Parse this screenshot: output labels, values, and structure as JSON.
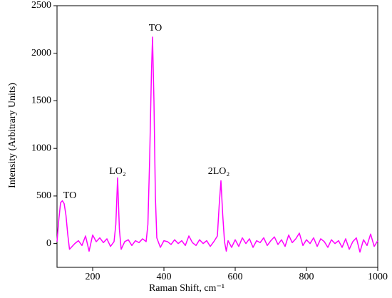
{
  "chart_data": {
    "type": "line",
    "x_label": "Raman Shift, cm⁻¹",
    "y_label": "Intensity (Arbitrary Units)",
    "annotations": [
      "TO",
      "LO₂",
      "TO",
      "2LO₂"
    ],
    "x": [
      100,
      105,
      110,
      115,
      120,
      125,
      130,
      135,
      140,
      150,
      160,
      170,
      180,
      190,
      200,
      210,
      220,
      230,
      240,
      250,
      260,
      265,
      270,
      275,
      280,
      290,
      300,
      310,
      320,
      330,
      340,
      350,
      355,
      360,
      365,
      368,
      372,
      376,
      380,
      390,
      400,
      410,
      420,
      430,
      440,
      450,
      460,
      470,
      480,
      490,
      500,
      510,
      520,
      530,
      540,
      550,
      555,
      560,
      565,
      570,
      575,
      580,
      590,
      600,
      610,
      620,
      630,
      640,
      650,
      660,
      670,
      680,
      690,
      700,
      710,
      720,
      730,
      740,
      750,
      760,
      770,
      780,
      790,
      800,
      810,
      820,
      830,
      840,
      850,
      860,
      870,
      880,
      890,
      900,
      910,
      920,
      930,
      940,
      950,
      960,
      970,
      980,
      990,
      1000
    ],
    "series": [
      {
        "name": "Intensity",
        "color": "#ff00ff",
        "values": [
          20,
          250,
          430,
          450,
          420,
          300,
          100,
          -60,
          -40,
          0,
          30,
          -20,
          80,
          -80,
          90,
          20,
          60,
          10,
          50,
          -30,
          20,
          200,
          690,
          150,
          -60,
          20,
          40,
          -20,
          30,
          10,
          50,
          20,
          200,
          900,
          1800,
          2170,
          1500,
          500,
          60,
          -40,
          30,
          20,
          -10,
          40,
          0,
          30,
          -20,
          80,
          10,
          -20,
          40,
          0,
          30,
          -30,
          20,
          80,
          400,
          660,
          300,
          20,
          -80,
          30,
          -40,
          40,
          -30,
          60,
          0,
          50,
          -40,
          30,
          10,
          60,
          -20,
          30,
          70,
          -10,
          40,
          -30,
          90,
          10,
          50,
          110,
          -20,
          40,
          0,
          60,
          -30,
          50,
          20,
          -40,
          40,
          0,
          30,
          -40,
          50,
          -60,
          20,
          60,
          -90,
          40,
          -20,
          100,
          -30,
          30
        ]
      }
    ],
    "xlim": [
      100,
      1000
    ],
    "xticks": [
      200,
      400,
      600,
      800,
      1000
    ],
    "ylim": [
      -250,
      2500
    ],
    "yticks": [
      0,
      500,
      1000,
      1500,
      2000,
      2500
    ]
  }
}
